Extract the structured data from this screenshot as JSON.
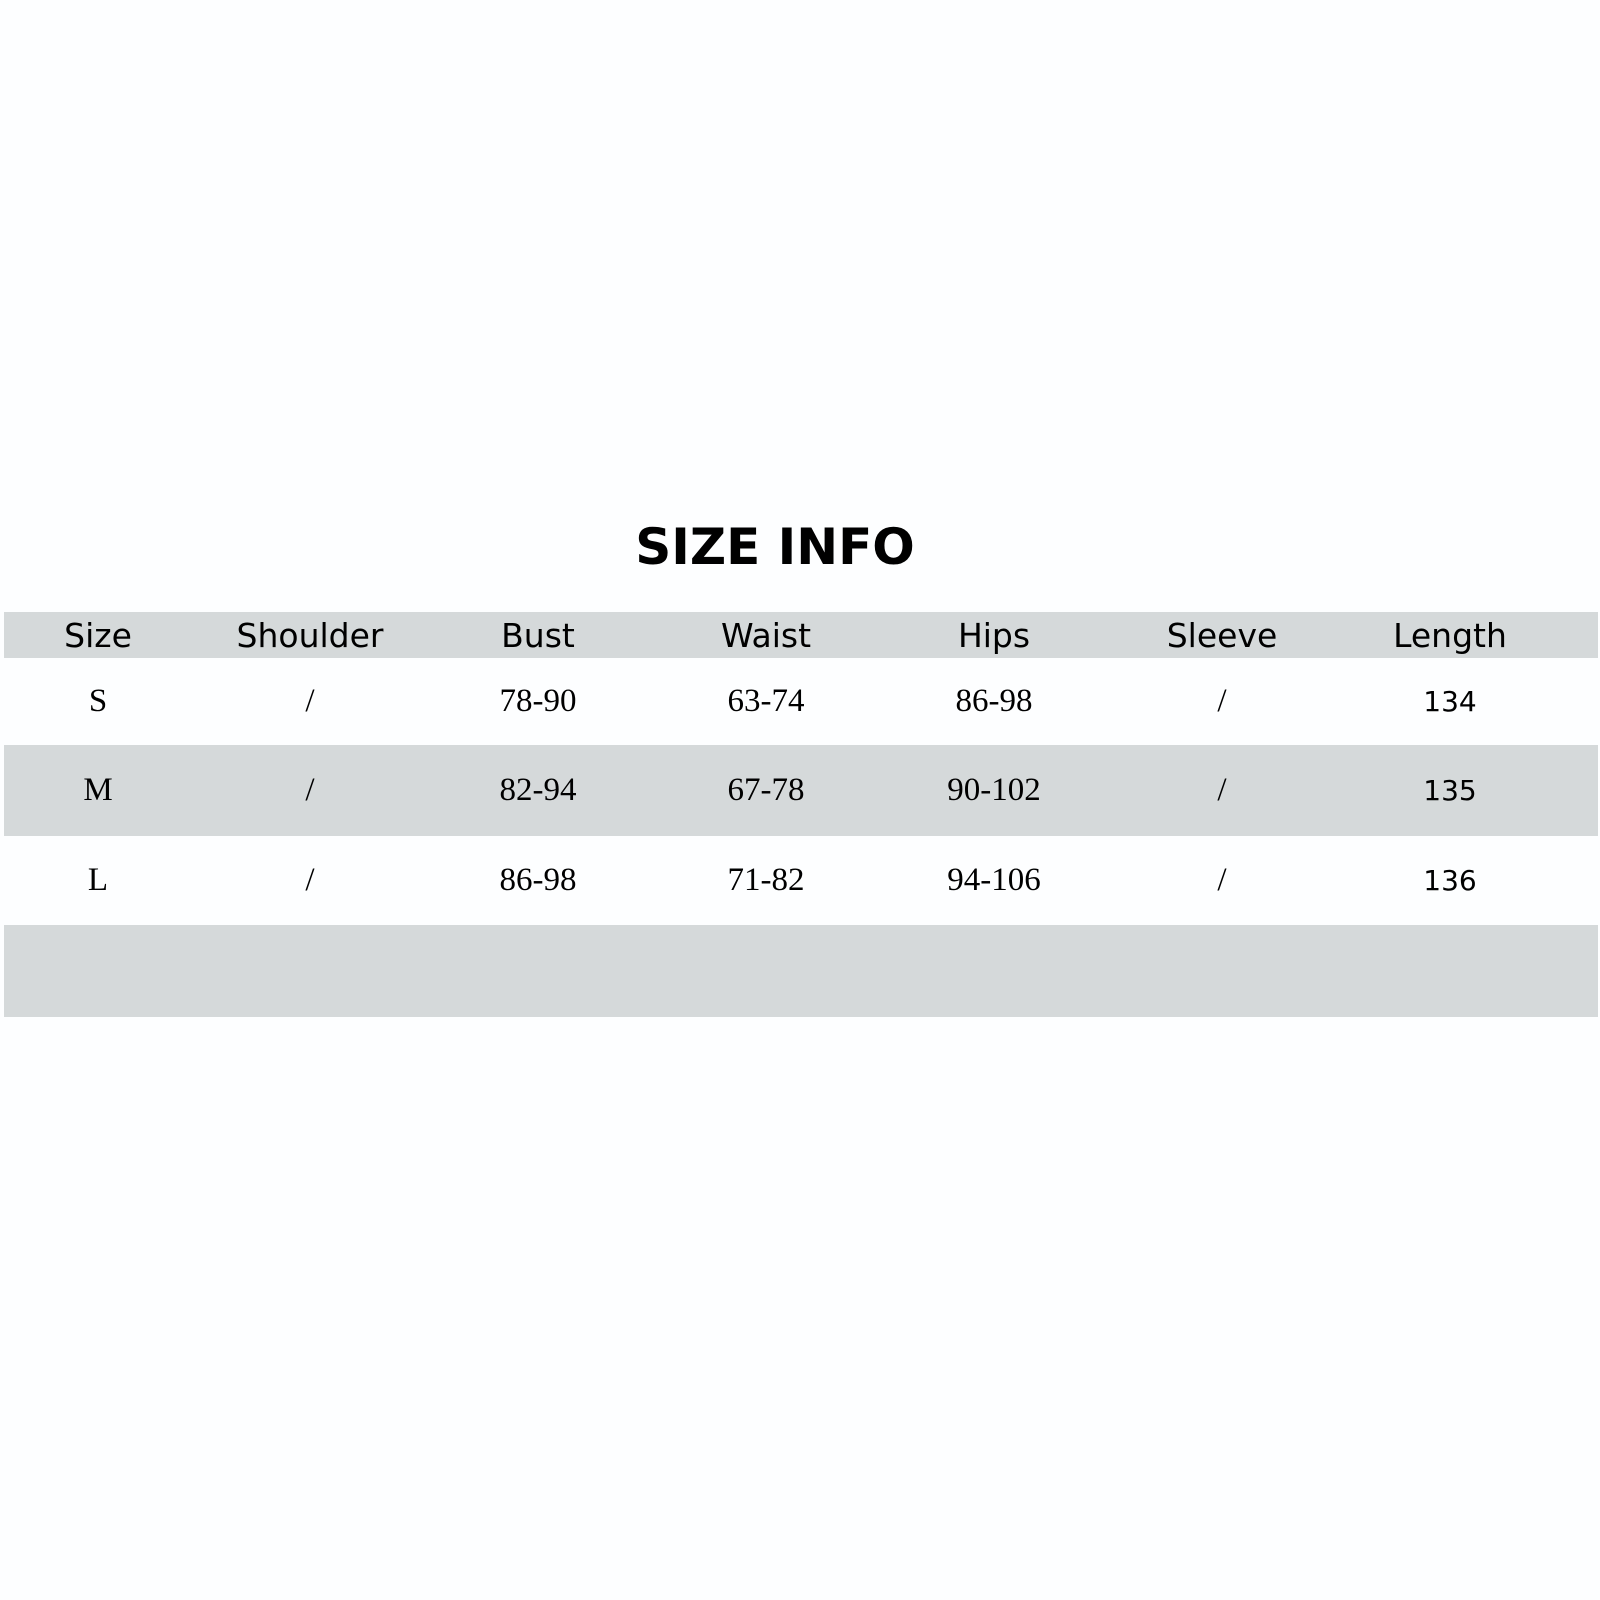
{
  "title": "SIZE INFO",
  "colors": {
    "band_gray": "#d5d9da",
    "background": "#fdfeff",
    "text": "#000000"
  },
  "table": {
    "headers": [
      "Size",
      "Shoulder",
      "Bust",
      "Waist",
      "Hips",
      "Sleeve",
      "Length"
    ],
    "rows": [
      [
        "S",
        "/",
        "78-90",
        "63-74",
        "86-98",
        "/",
        "134"
      ],
      [
        "M",
        "/",
        "82-94",
        "67-78",
        "90-102",
        "/",
        "135"
      ],
      [
        "L",
        "/",
        "86-98",
        "71-82",
        "94-106",
        "/",
        "136"
      ]
    ]
  }
}
